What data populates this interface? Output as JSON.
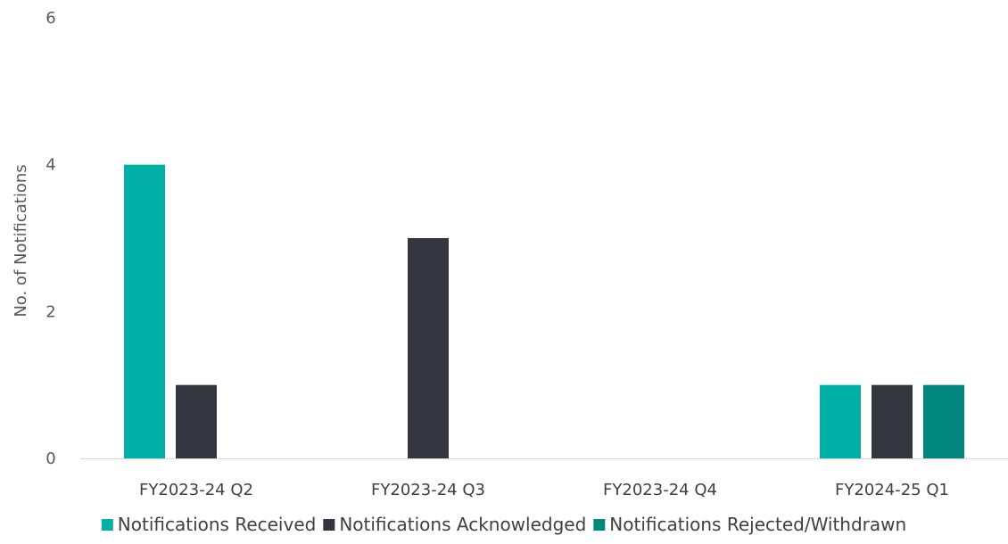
{
  "chart_data": {
    "type": "bar",
    "title": "",
    "xlabel": "",
    "ylabel": "No. of Notifications",
    "ylim": [
      0,
      6
    ],
    "yticks": [
      0,
      2,
      4,
      6
    ],
    "grid": false,
    "legend_position": "bottom",
    "categories": [
      "FY2023-24 Q2",
      "FY2023-24 Q3",
      "FY2023-24 Q4",
      "FY2024-25 Q1"
    ],
    "series": [
      {
        "name": "Notifications Received",
        "color": "#00b0a6",
        "values": [
          4,
          0,
          0,
          1
        ]
      },
      {
        "name": "Notifications Acknowledged",
        "color": "#33353f",
        "values": [
          1,
          3,
          0,
          1
        ]
      },
      {
        "name": "Notifications Rejected/Withdrawn",
        "color": "#00877e",
        "values": [
          0,
          0,
          0,
          1
        ]
      }
    ]
  }
}
